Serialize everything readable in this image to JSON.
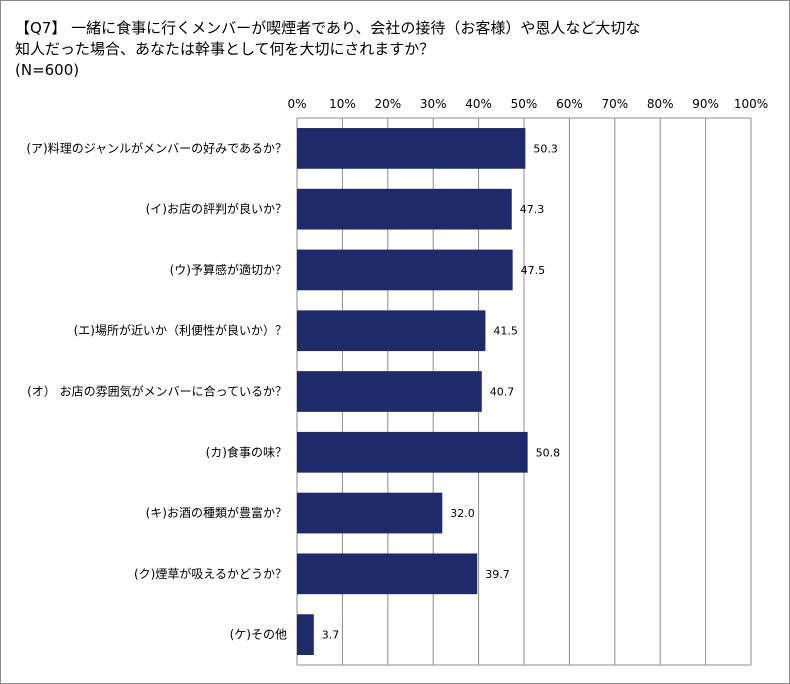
{
  "chart_data": {
    "type": "bar",
    "orientation": "horizontal",
    "title": "【Q7】 一緒に食事に行くメンバーが喫煙者であり、会社の接待（お客様）や恩人など大切な知人だった場合、あなたは幹事として何を大切にされますか？",
    "title_lines": [
      "【Q7】 一緒に食事に行くメンバーが喫煙者であり、会社の接待（お客様）や恩人など大切な",
      "知人だった場合、あなたは幹事として何を大切にされますか？",
      "(N=600)"
    ],
    "subtitle": "(N=600)",
    "categories": [
      "(ア)料理のジャンルがメンバーの好みであるか？",
      "(イ)お店の評判が良いか？",
      "(ウ)予算感が適切か？",
      "(エ)場所が近いか（利便性が良いか）？",
      "(オ） お店の雰囲気がメンバーに合っているか？",
      "(カ)食事の味？",
      "(キ)お酒の種類が豊富か？",
      "(ク)煙草が吸えるかどうか？",
      "(ケ)その他"
    ],
    "values": [
      50.3,
      47.3,
      47.5,
      41.5,
      40.7,
      50.8,
      32.0,
      39.7,
      3.7
    ],
    "value_labels": [
      "50.3",
      "47.3",
      "47.5",
      "41.5",
      "40.7",
      "50.8",
      "32.0",
      "39.7",
      "3.7"
    ],
    "xlim": [
      0,
      100
    ],
    "x_ticks": [
      "0%",
      "10%",
      "20%",
      "30%",
      "40%",
      "50%",
      "60%",
      "70%",
      "80%",
      "90%",
      "100%"
    ],
    "x_axis_position": "top",
    "grid": true,
    "legend": "none",
    "bar_color": "#1f2a6b"
  }
}
